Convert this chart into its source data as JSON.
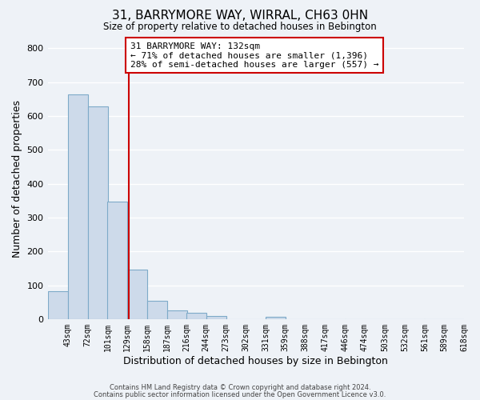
{
  "title": "31, BARRYMORE WAY, WIRRAL, CH63 0HN",
  "subtitle": "Size of property relative to detached houses in Bebington",
  "bar_labels": [
    "43sqm",
    "72sqm",
    "101sqm",
    "129sqm",
    "158sqm",
    "187sqm",
    "216sqm",
    "244sqm",
    "273sqm",
    "302sqm",
    "331sqm",
    "359sqm",
    "388sqm",
    "417sqm",
    "446sqm",
    "474sqm",
    "503sqm",
    "532sqm",
    "561sqm",
    "589sqm",
    "618sqm"
  ],
  "bar_values": [
    82,
    663,
    628,
    348,
    147,
    55,
    25,
    18,
    10,
    0,
    0,
    7,
    0,
    0,
    0,
    0,
    0,
    0,
    0,
    0,
    0
  ],
  "bar_color": "#cddaea",
  "bar_edge_color": "#7eaac8",
  "property_line_x": 3,
  "property_line_color": "#cc0000",
  "annotation_text": "31 BARRYMORE WAY: 132sqm\n← 71% of detached houses are smaller (1,396)\n28% of semi-detached houses are larger (557) →",
  "annotation_box_color": "#ffffff",
  "annotation_box_edge": "#cc0000",
  "xlabel": "Distribution of detached houses by size in Bebington",
  "ylabel": "Number of detached properties",
  "ylim": [
    0,
    830
  ],
  "yticks": [
    0,
    100,
    200,
    300,
    400,
    500,
    600,
    700,
    800
  ],
  "footer_line1": "Contains HM Land Registry data © Crown copyright and database right 2024.",
  "footer_line2": "Contains public sector information licensed under the Open Government Licence v3.0.",
  "bg_color": "#eef2f7",
  "grid_color": "#ffffff",
  "bin_width": 29
}
